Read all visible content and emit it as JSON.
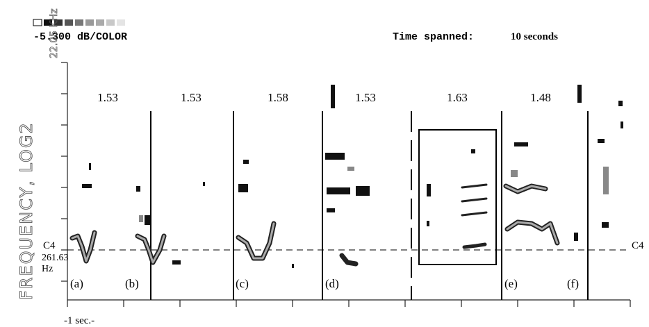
{
  "header": {
    "range": "22.05 KHz",
    "scale": "-5.300 dB/COLOR",
    "time_label": "Time spanned:",
    "time_value": "10 seconds"
  },
  "axis": {
    "y_label": "FREQUENCY, LOG2",
    "x_unit": "-1 sec.-",
    "note_left": "C4",
    "freq": "261.63",
    "freq_unit": "Hz",
    "note_right": "C4"
  },
  "durations": [
    "1.53",
    "1.53",
    "1.58",
    "1.53",
    "1.63",
    "1.48"
  ],
  "panels": [
    "(a)",
    "(b)",
    "(c)",
    "(d)",
    "(e)",
    "(f)"
  ]
}
